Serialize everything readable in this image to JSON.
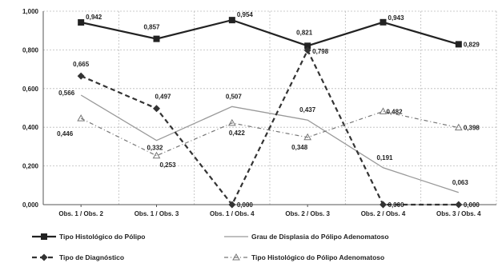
{
  "chart_data": {
    "type": "line",
    "categories": [
      "Obs. 1 / Obs. 2",
      "Obs. 1 / Obs. 3",
      "Obs. 1 / Obs. 4",
      "Obs. 2 / Obs. 3",
      "Obs. 2 / Obs. 4",
      "Obs. 3 / Obs. 4"
    ],
    "yticks": [
      "0,000",
      "0,200",
      "0,400",
      "0,600",
      "0,800",
      "1,000"
    ],
    "ylim": [
      0,
      1
    ],
    "grid": true,
    "legend_position": "bottom",
    "series": [
      {
        "name": "Tipo Histológico do Pólipo",
        "values": [
          0.942,
          0.857,
          0.954,
          0.821,
          0.943,
          0.829
        ],
        "labels": [
          "0,942",
          "0,857",
          "0,954",
          "0,821",
          "0,943",
          "0,829"
        ],
        "color": "#222222",
        "style": "solid-square"
      },
      {
        "name": "Grau de Displasia do Pólipo Adenomatoso",
        "values": [
          0.566,
          0.332,
          0.507,
          0.437,
          0.191,
          0.063
        ],
        "labels": [
          "0,566",
          "0,332",
          "0,507",
          "0,437",
          "0,191",
          "0,063"
        ],
        "color": "#999999",
        "style": "thin-solid"
      },
      {
        "name": "Tipo de Diagnóstico",
        "values": [
          0.665,
          0.497,
          0.0,
          0.798,
          0.0,
          0.0
        ],
        "labels": [
          "0,665",
          "0,497",
          "0,000",
          "0,798",
          "0,000",
          "0,000"
        ],
        "color": "#333333",
        "style": "dashed-diamond"
      },
      {
        "name": "Tipo Histológico do Pólipo Adenomatoso",
        "values": [
          0.446,
          0.253,
          0.422,
          0.348,
          0.482,
          0.398
        ],
        "labels": [
          "0,446",
          "0,253",
          "0,422",
          "0,348",
          "0,482",
          "0,398"
        ],
        "color": "#777777",
        "style": "dashdot-triangle"
      }
    ]
  }
}
